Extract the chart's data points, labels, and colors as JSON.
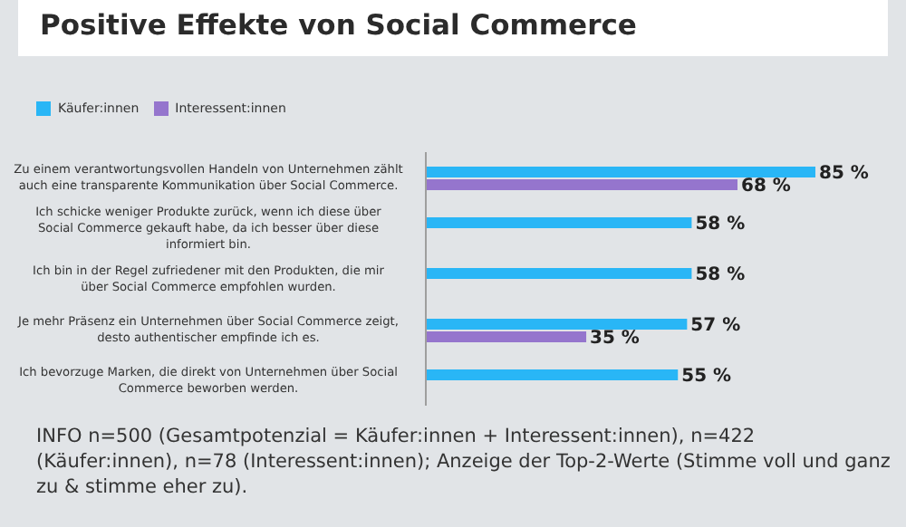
{
  "chart_data": {
    "type": "bar",
    "orientation": "horizontal",
    "title": "Positive Effekte von Social Commerce",
    "categories": [
      "Zu einem verantwortungsvollen Handeln von Unternehmen zählt auch eine transparente Kommunikation über Social Commerce.",
      "Ich schicke weniger Produkte zurück, wenn ich diese über Social Commerce gekauft habe, da ich besser über diese informiert bin.",
      "Ich bin in der Regel zufriedener mit den Produkten, die mir über Social Commerce empfohlen wurden.",
      "Je mehr Präsenz ein Unternehmen über Social Commerce zeigt, desto authentischer empfinde ich es.",
      "Ich bevorzuge Marken, die direkt von Unternehmen über Social Commerce beworben werden."
    ],
    "series": [
      {
        "name": "Käufer:innen",
        "color": "#29b6f6",
        "values": [
          85,
          58,
          58,
          57,
          55
        ],
        "value_labels": [
          "85 %",
          "58 %",
          "58 %",
          "57 %",
          "55 %"
        ]
      },
      {
        "name": "Interessent:innen",
        "color": "#9575cd",
        "values": [
          68,
          null,
          null,
          35,
          null
        ],
        "value_labels": [
          "68 %",
          null,
          null,
          "35 %",
          null
        ]
      }
    ],
    "legend": "top left",
    "grid": false,
    "annotations": [
      "INFO n=500 (Gesamtpotenzial = Käufer:innen + Interessent:innen), n=422 (Käufer:innen), n=78 (Interessent:innen); Anzeige der Top-2-Werte (Stimme voll und ganz zu & stimme eher zu)."
    ]
  }
}
